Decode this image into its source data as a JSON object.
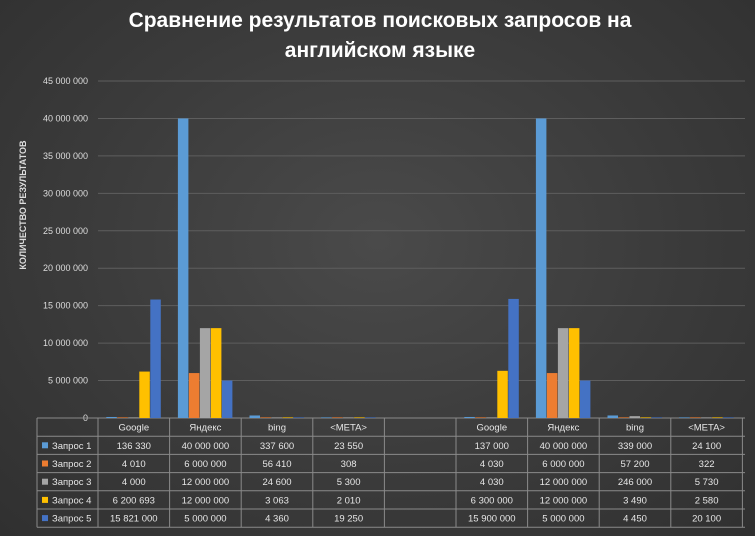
{
  "title_line1": "Сравнение результатов поисковых запросов на",
  "title_line2": "английском языке",
  "ylabel": "КОЛИЧЕСТВО РЕЗУЛЬТАТОВ",
  "colors": {
    "series": [
      "#5b9bd5",
      "#ed7d31",
      "#a5a5a5",
      "#ffc000",
      "#4472c4"
    ]
  },
  "chart_data": {
    "type": "bar",
    "ylim": [
      0,
      45000000
    ],
    "yticks": [
      0,
      5000000,
      10000000,
      15000000,
      20000000,
      25000000,
      30000000,
      35000000,
      40000000,
      45000000
    ],
    "ytick_labels": [
      "0",
      "5 000 000",
      "10 000 000",
      "15 000 000",
      "20 000 000",
      "25 000 000",
      "30 000 000",
      "35 000 000",
      "40 000 000",
      "45 000 000"
    ],
    "ylabel": "КОЛИЧЕСТВО РЕЗУЛЬТАТОВ",
    "grid": true,
    "legend": "table",
    "groups": [
      {
        "categories": [
          "Google",
          "Яндекс",
          "bing",
          "<META>"
        ],
        "series": [
          {
            "name": "Запрос 1",
            "values": [
              136330,
              40000000,
              337600,
              23550
            ],
            "labels": [
              "136 330",
              "40 000 000",
              "337 600",
              "23 550"
            ]
          },
          {
            "name": "Запрос 2",
            "values": [
              4010,
              6000000,
              56410,
              308
            ],
            "labels": [
              "4 010",
              "6 000 000",
              "56 410",
              "308"
            ]
          },
          {
            "name": "Запрос 3",
            "values": [
              4000,
              12000000,
              24600,
              5300
            ],
            "labels": [
              "4 000",
              "12 000 000",
              "24 600",
              "5 300"
            ]
          },
          {
            "name": "Запрос 4",
            "values": [
              6200693,
              12000000,
              3063,
              2010
            ],
            "labels": [
              "6 200 693",
              "12 000 000",
              "3 063",
              "2 010"
            ]
          },
          {
            "name": "Запрос 5",
            "values": [
              15821000,
              5000000,
              4360,
              19250
            ],
            "labels": [
              "15 821 000",
              "5 000 000",
              "4 360",
              "19 250"
            ]
          }
        ]
      },
      {
        "categories": [
          "Google",
          "Яндекс",
          "bing",
          "<META>"
        ],
        "series": [
          {
            "name": "Запрос 1",
            "values": [
              137000,
              40000000,
              339000,
              24100
            ],
            "labels": [
              "137 000",
              "40 000 000",
              "339 000",
              "24 100"
            ]
          },
          {
            "name": "Запрос 2",
            "values": [
              4030,
              6000000,
              57200,
              322
            ],
            "labels": [
              "4 030",
              "6 000 000",
              "57 200",
              "322"
            ]
          },
          {
            "name": "Запрос 3",
            "values": [
              4030,
              12000000,
              246000,
              5730
            ],
            "labels": [
              "4 030",
              "12 000 000",
              "246 000",
              "5 730"
            ]
          },
          {
            "name": "Запрос 4",
            "values": [
              6300000,
              12000000,
              3490,
              2580
            ],
            "labels": [
              "6 300 000",
              "12 000 000",
              "3 490",
              "2 580"
            ]
          },
          {
            "name": "Запрос 5",
            "values": [
              15900000,
              5000000,
              4450,
              20100
            ],
            "labels": [
              "15 900 000",
              "5 000 000",
              "4 450",
              "20 100"
            ]
          }
        ]
      }
    ]
  }
}
